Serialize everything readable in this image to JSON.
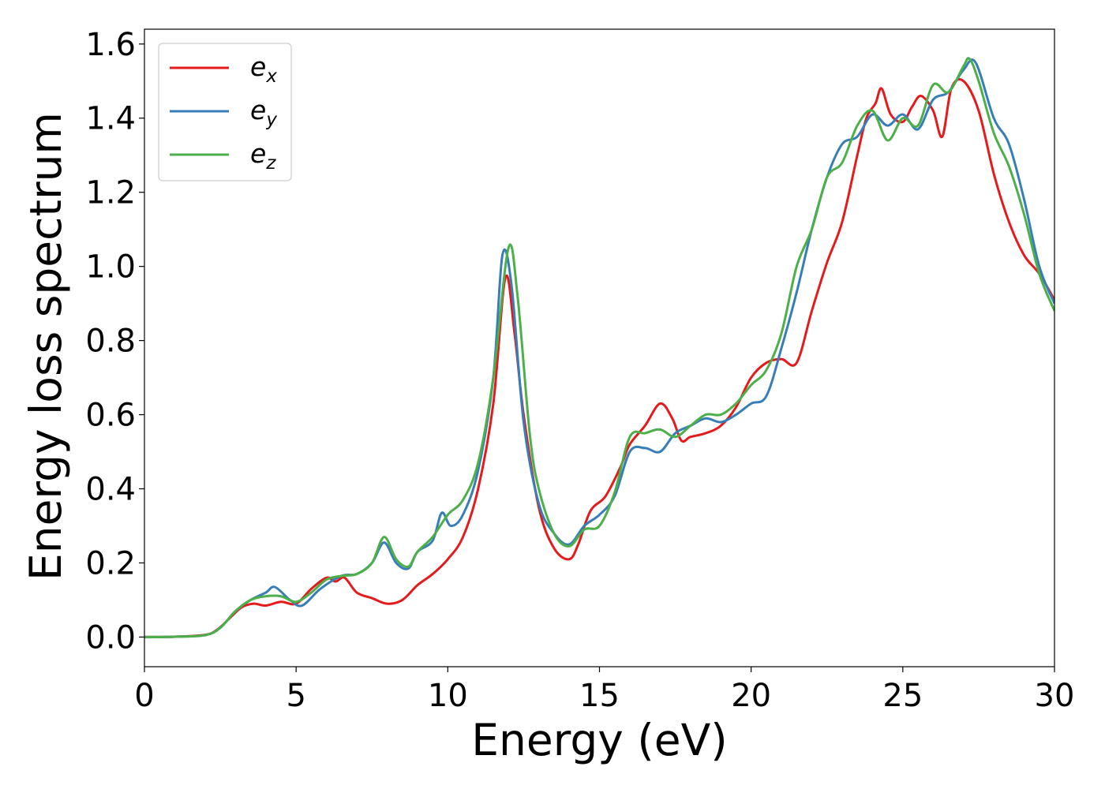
{
  "chart_data": {
    "type": "line",
    "xlabel": "Energy (eV)",
    "ylabel": "Energy loss spectrum",
    "xlim": [
      0,
      30
    ],
    "ylim": [
      -0.08,
      1.64
    ],
    "xticks": [
      0,
      5,
      10,
      15,
      20,
      25,
      30
    ],
    "xtick_labels": [
      "0",
      "5",
      "10",
      "15",
      "20",
      "25",
      "30"
    ],
    "yticks": [
      0.0,
      0.2,
      0.4,
      0.6,
      0.8,
      1.0,
      1.2,
      1.4,
      1.6
    ],
    "ytick_labels": [
      "0.0",
      "0.2",
      "0.4",
      "0.6",
      "0.8",
      "1.0",
      "1.2",
      "1.4",
      "1.6"
    ],
    "grid": false,
    "legend_position": "top-left",
    "series": [
      {
        "name": "e_x",
        "label_base": "e",
        "label_sub": "x",
        "color": "#e41a1c",
        "points": [
          [
            0,
            0
          ],
          [
            1,
            0.001
          ],
          [
            2,
            0.006
          ],
          [
            2.4,
            0.02
          ],
          [
            2.8,
            0.05
          ],
          [
            3.2,
            0.08
          ],
          [
            3.6,
            0.09
          ],
          [
            4,
            0.085
          ],
          [
            4.5,
            0.095
          ],
          [
            5,
            0.09
          ],
          [
            5.5,
            0.13
          ],
          [
            6,
            0.16
          ],
          [
            6.3,
            0.15
          ],
          [
            6.6,
            0.16
          ],
          [
            7,
            0.12
          ],
          [
            7.5,
            0.105
          ],
          [
            8,
            0.09
          ],
          [
            8.5,
            0.1
          ],
          [
            9,
            0.14
          ],
          [
            9.5,
            0.17
          ],
          [
            10,
            0.21
          ],
          [
            10.5,
            0.27
          ],
          [
            11,
            0.4
          ],
          [
            11.5,
            0.63
          ],
          [
            11.9,
            0.97
          ],
          [
            12.2,
            0.82
          ],
          [
            12.5,
            0.6
          ],
          [
            13,
            0.35
          ],
          [
            13.5,
            0.24
          ],
          [
            14,
            0.21
          ],
          [
            14.3,
            0.25
          ],
          [
            14.7,
            0.34
          ],
          [
            15.2,
            0.38
          ],
          [
            15.7,
            0.46
          ],
          [
            16,
            0.52
          ],
          [
            16.5,
            0.57
          ],
          [
            17,
            0.63
          ],
          [
            17.4,
            0.59
          ],
          [
            17.7,
            0.53
          ],
          [
            18,
            0.54
          ],
          [
            18.5,
            0.55
          ],
          [
            19,
            0.57
          ],
          [
            19.5,
            0.62
          ],
          [
            20,
            0.7
          ],
          [
            20.5,
            0.74
          ],
          [
            21,
            0.75
          ],
          [
            21.5,
            0.74
          ],
          [
            22,
            0.88
          ],
          [
            22.5,
            1.01
          ],
          [
            23,
            1.12
          ],
          [
            23.5,
            1.3
          ],
          [
            23.8,
            1.4
          ],
          [
            24.1,
            1.44
          ],
          [
            24.3,
            1.48
          ],
          [
            24.6,
            1.41
          ],
          [
            25,
            1.39
          ],
          [
            25.3,
            1.43
          ],
          [
            25.6,
            1.46
          ],
          [
            26,
            1.42
          ],
          [
            26.3,
            1.35
          ],
          [
            26.6,
            1.48
          ],
          [
            27,
            1.5
          ],
          [
            27.5,
            1.42
          ],
          [
            28,
            1.25
          ],
          [
            28.5,
            1.12
          ],
          [
            29,
            1.03
          ],
          [
            29.5,
            0.98
          ],
          [
            30,
            0.91
          ]
        ]
      },
      {
        "name": "e_y",
        "label_base": "e",
        "label_sub": "y",
        "color": "#377eb8",
        "points": [
          [
            0,
            0
          ],
          [
            1,
            0.001
          ],
          [
            2,
            0.005
          ],
          [
            2.5,
            0.025
          ],
          [
            3,
            0.07
          ],
          [
            3.5,
            0.1
          ],
          [
            4,
            0.12
          ],
          [
            4.3,
            0.135
          ],
          [
            4.8,
            0.1
          ],
          [
            5.2,
            0.085
          ],
          [
            5.8,
            0.13
          ],
          [
            6.5,
            0.165
          ],
          [
            7,
            0.17
          ],
          [
            7.5,
            0.2
          ],
          [
            7.9,
            0.255
          ],
          [
            8.3,
            0.2
          ],
          [
            8.7,
            0.185
          ],
          [
            9,
            0.23
          ],
          [
            9.5,
            0.26
          ],
          [
            9.8,
            0.335
          ],
          [
            10.1,
            0.3
          ],
          [
            10.5,
            0.33
          ],
          [
            11,
            0.45
          ],
          [
            11.5,
            0.7
          ],
          [
            11.8,
            1.03
          ],
          [
            12.1,
            0.95
          ],
          [
            12.5,
            0.58
          ],
          [
            13,
            0.36
          ],
          [
            13.5,
            0.28
          ],
          [
            14,
            0.25
          ],
          [
            14.5,
            0.3
          ],
          [
            15,
            0.33
          ],
          [
            15.5,
            0.38
          ],
          [
            16,
            0.5
          ],
          [
            16.5,
            0.51
          ],
          [
            17,
            0.5
          ],
          [
            17.5,
            0.55
          ],
          [
            18,
            0.57
          ],
          [
            18.5,
            0.59
          ],
          [
            19,
            0.58
          ],
          [
            19.5,
            0.6
          ],
          [
            20,
            0.63
          ],
          [
            20.5,
            0.65
          ],
          [
            21,
            0.78
          ],
          [
            21.5,
            0.93
          ],
          [
            22,
            1.1
          ],
          [
            22.5,
            1.24
          ],
          [
            23,
            1.33
          ],
          [
            23.5,
            1.35
          ],
          [
            24,
            1.41
          ],
          [
            24.5,
            1.38
          ],
          [
            25,
            1.41
          ],
          [
            25.5,
            1.37
          ],
          [
            26,
            1.45
          ],
          [
            26.5,
            1.47
          ],
          [
            27,
            1.53
          ],
          [
            27.4,
            1.55
          ],
          [
            28,
            1.4
          ],
          [
            28.5,
            1.33
          ],
          [
            29,
            1.18
          ],
          [
            29.5,
            1.0
          ],
          [
            30,
            0.9
          ]
        ]
      },
      {
        "name": "e_z",
        "label_base": "e",
        "label_sub": "z",
        "color": "#4daf4a",
        "points": [
          [
            0,
            0
          ],
          [
            1,
            0.001
          ],
          [
            2,
            0.005
          ],
          [
            2.5,
            0.025
          ],
          [
            3,
            0.07
          ],
          [
            3.5,
            0.1
          ],
          [
            4,
            0.11
          ],
          [
            4.5,
            0.11
          ],
          [
            5,
            0.095
          ],
          [
            5.5,
            0.12
          ],
          [
            6,
            0.155
          ],
          [
            6.5,
            0.165
          ],
          [
            7,
            0.17
          ],
          [
            7.5,
            0.2
          ],
          [
            7.9,
            0.27
          ],
          [
            8.3,
            0.21
          ],
          [
            8.7,
            0.19
          ],
          [
            9,
            0.23
          ],
          [
            9.5,
            0.27
          ],
          [
            10,
            0.33
          ],
          [
            10.5,
            0.37
          ],
          [
            11,
            0.47
          ],
          [
            11.5,
            0.7
          ],
          [
            12,
            1.05
          ],
          [
            12.3,
            0.92
          ],
          [
            12.7,
            0.55
          ],
          [
            13,
            0.4
          ],
          [
            13.5,
            0.28
          ],
          [
            14,
            0.245
          ],
          [
            14.5,
            0.29
          ],
          [
            15,
            0.3
          ],
          [
            15.5,
            0.39
          ],
          [
            16,
            0.54
          ],
          [
            16.5,
            0.55
          ],
          [
            17,
            0.56
          ],
          [
            17.5,
            0.54
          ],
          [
            18,
            0.57
          ],
          [
            18.5,
            0.6
          ],
          [
            19,
            0.6
          ],
          [
            19.5,
            0.63
          ],
          [
            20,
            0.68
          ],
          [
            20.5,
            0.72
          ],
          [
            21,
            0.82
          ],
          [
            21.5,
            1.0
          ],
          [
            22,
            1.1
          ],
          [
            22.5,
            1.24
          ],
          [
            23,
            1.28
          ],
          [
            23.5,
            1.38
          ],
          [
            24,
            1.42
          ],
          [
            24.5,
            1.34
          ],
          [
            25,
            1.4
          ],
          [
            25.5,
            1.38
          ],
          [
            26,
            1.49
          ],
          [
            26.5,
            1.47
          ],
          [
            27,
            1.54
          ],
          [
            27.2,
            1.56
          ],
          [
            27.5,
            1.5
          ],
          [
            28,
            1.36
          ],
          [
            28.5,
            1.27
          ],
          [
            29,
            1.14
          ],
          [
            29.5,
            0.98
          ],
          [
            30,
            0.88
          ]
        ]
      }
    ]
  }
}
